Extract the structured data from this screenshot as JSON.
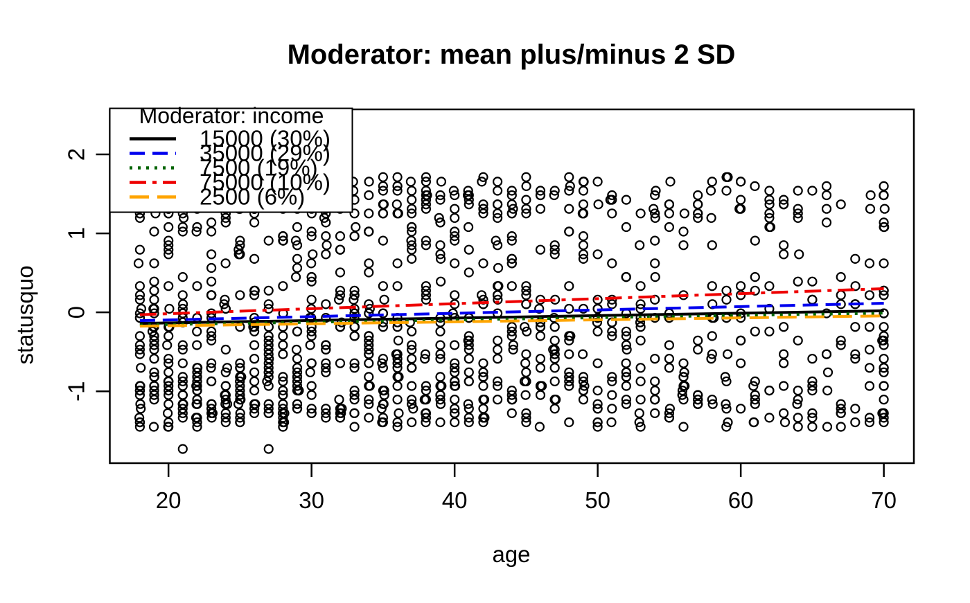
{
  "figure": {
    "title": "Moderator: mean plus/minus 2 SD",
    "background_color": "#ffffff",
    "foreground_color": "#000000"
  },
  "legend": {
    "title": "Moderator: income",
    "items": [
      {
        "label": "15000 (30%)",
        "color": "#000000",
        "linetype": "solid"
      },
      {
        "label": "35000 (29%)",
        "color": "#0000EE",
        "linetype": "dashed"
      },
      {
        "label": "7500 (19%)",
        "color": "#006400",
        "linetype": "dotted"
      },
      {
        "label": "75000 (10%)",
        "color": "#EE0000",
        "linetype": "dashdot"
      },
      {
        "label": "2500 (6%)",
        "color": "#FFA500",
        "linetype": "longdash"
      }
    ]
  },
  "chart_data": {
    "type": "scatter",
    "title": "Moderator: mean plus/minus 2 SD",
    "xlabel": "age",
    "ylabel": "statusquo",
    "xlim": [
      15.9,
      72.1
    ],
    "ylim": [
      -1.91,
      2.57
    ],
    "xticks": [
      20,
      30,
      40,
      50,
      60,
      70
    ],
    "yticks": [
      -1,
      0,
      1,
      2
    ],
    "grid": false,
    "marker": {
      "shape": "open-circle",
      "color": "#000000",
      "radius_px": 6,
      "stroke_px": 2.2
    },
    "lines": [
      {
        "name": "15000 (30%)",
        "color": "#000000",
        "linetype": "solid",
        "x": [
          18,
          70
        ],
        "y": [
          -0.14,
          0.02
        ]
      },
      {
        "name": "35000 (29%)",
        "color": "#0000EE",
        "linetype": "dashed",
        "x": [
          18,
          70
        ],
        "y": [
          -0.105,
          0.115
        ]
      },
      {
        "name": "7500 (19%)",
        "color": "#006400",
        "linetype": "dotted",
        "x": [
          18,
          70
        ],
        "y": [
          -0.16,
          -0.01
        ]
      },
      {
        "name": "75000 (10%)",
        "color": "#EE0000",
        "linetype": "dashdot",
        "x": [
          18,
          70
        ],
        "y": [
          -0.03,
          0.3
        ]
      },
      {
        "name": "2500 (6%)",
        "color": "#FFA500",
        "linetype": "longdash",
        "x": [
          18,
          70
        ],
        "y": [
          -0.175,
          -0.045
        ]
      }
    ],
    "scatter": {
      "description": "open-circle jittered columns of statusquo scores at integer ages",
      "ages": [
        18,
        19,
        20,
        21,
        22,
        23,
        24,
        25,
        26,
        27,
        28,
        29,
        30,
        31,
        32,
        33,
        34,
        35,
        36,
        37,
        38,
        39,
        40,
        41,
        42,
        43,
        44,
        45,
        46,
        47,
        48,
        49,
        50,
        51,
        52,
        53,
        54,
        55,
        56,
        57,
        58,
        59,
        60,
        61,
        62,
        63,
        64,
        65,
        66,
        67,
        68,
        69,
        70
      ],
      "counts": [
        32,
        30,
        32,
        30,
        29,
        30,
        28,
        29,
        28,
        27,
        29,
        27,
        28,
        27,
        26,
        27,
        25,
        27,
        26,
        25,
        26,
        24,
        26,
        23,
        24,
        22,
        23,
        22,
        19,
        20,
        18,
        19,
        18,
        16,
        17,
        15,
        16,
        15,
        14,
        14,
        13,
        14,
        13,
        12,
        13,
        11,
        12,
        11,
        10,
        11,
        9,
        10,
        30
      ],
      "y_bands": [
        {
          "range": [
            1.22,
            1.72
          ],
          "weight": 0.2
        },
        {
          "range": [
            0.28,
            1.22
          ],
          "weight": 0.16
        },
        {
          "range": [
            -0.72,
            0.28
          ],
          "weight": 0.3
        },
        {
          "range": [
            -1.36,
            -0.72
          ],
          "weight": 0.3
        },
        {
          "range": [
            -1.45,
            -1.36
          ],
          "weight": 0.04
        }
      ],
      "level_base": -1.45,
      "level_step": 0.0575,
      "seed": 7,
      "outliers": [
        [
          21,
          -1.73
        ],
        [
          27,
          -1.73
        ]
      ]
    }
  }
}
